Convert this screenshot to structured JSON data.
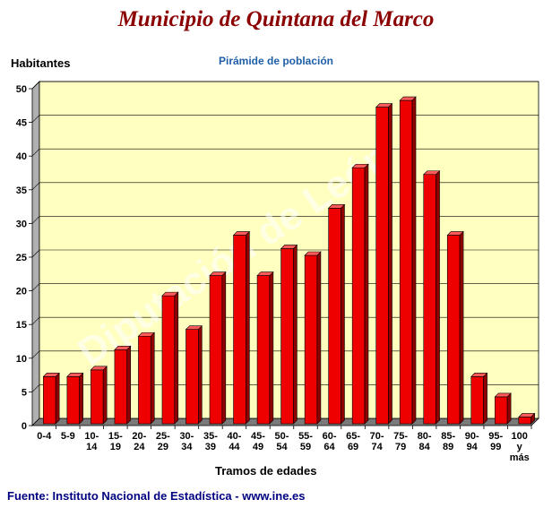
{
  "header": {
    "title": "Municipio de Quintana del Marco",
    "subtitle": "Pirámide de población",
    "source": "Fuente: Instituto Nacional de Estadística - www.ine.es",
    "watermark": "Diputación de León"
  },
  "chart_data": {
    "type": "bar",
    "title": "Pirámide de población",
    "xlabel": "Tramos de edades",
    "ylabel": "Habitantes",
    "ylim": [
      0,
      50
    ],
    "yticks": [
      0,
      5,
      10,
      15,
      20,
      25,
      30,
      35,
      40,
      45,
      50
    ],
    "grid": true,
    "categories": [
      "0-4",
      "5-9",
      "10-14",
      "15-19",
      "20-24",
      "25-29",
      "30-34",
      "35-39",
      "40-44",
      "45-49",
      "50-54",
      "55-59",
      "60-64",
      "65-69",
      "70-74",
      "75-79",
      "80-84",
      "85-89",
      "90-94",
      "95-99",
      "100 y más"
    ],
    "category_lines": [
      [
        "0-4"
      ],
      [
        "5-9"
      ],
      [
        "10-",
        "14"
      ],
      [
        "15-",
        "19"
      ],
      [
        "20-",
        "24"
      ],
      [
        "25-",
        "29"
      ],
      [
        "30-",
        "34"
      ],
      [
        "35-",
        "39"
      ],
      [
        "40-",
        "44"
      ],
      [
        "45-",
        "49"
      ],
      [
        "50-",
        "54"
      ],
      [
        "55-",
        "59"
      ],
      [
        "60-",
        "64"
      ],
      [
        "65-",
        "69"
      ],
      [
        "70-",
        "74"
      ],
      [
        "75-",
        "79"
      ],
      [
        "80-",
        "84"
      ],
      [
        "85-",
        "89"
      ],
      [
        "90-",
        "94"
      ],
      [
        "95-",
        "99"
      ],
      [
        "100",
        "y",
        "más"
      ]
    ],
    "values": [
      7,
      7,
      8,
      11,
      13,
      19,
      14,
      22,
      28,
      22,
      26,
      25,
      32,
      38,
      47,
      48,
      37,
      28,
      7,
      4,
      1
    ],
    "colors": {
      "bar": "#ee0000",
      "bar_side": "#8f0000",
      "bar_top": "#ff5a5a",
      "plot_bg": "#ffffc0",
      "wall": "#b0b0b0",
      "floor": "#7a7a7a"
    }
  }
}
